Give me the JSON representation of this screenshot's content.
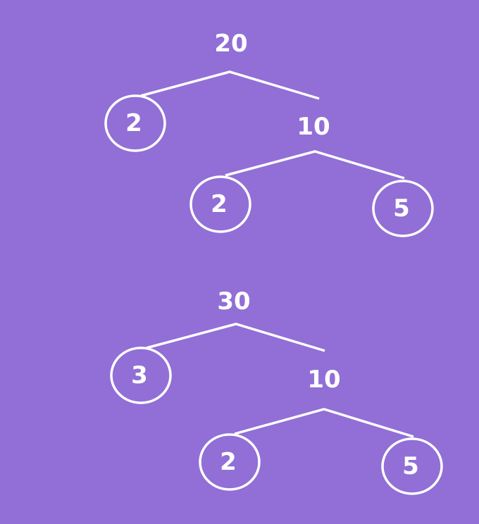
{
  "colors": {
    "background": "#916fd6",
    "stroke": "#ffffff",
    "text": "#ffffff"
  },
  "trees": [
    {
      "root": "20",
      "left_leaf": "2",
      "child_root": "10",
      "child_left_leaf": "2",
      "child_right_leaf": "5"
    },
    {
      "root": "30",
      "left_leaf": "3",
      "child_root": "10",
      "child_left_leaf": "2",
      "child_right_leaf": "5"
    }
  ]
}
